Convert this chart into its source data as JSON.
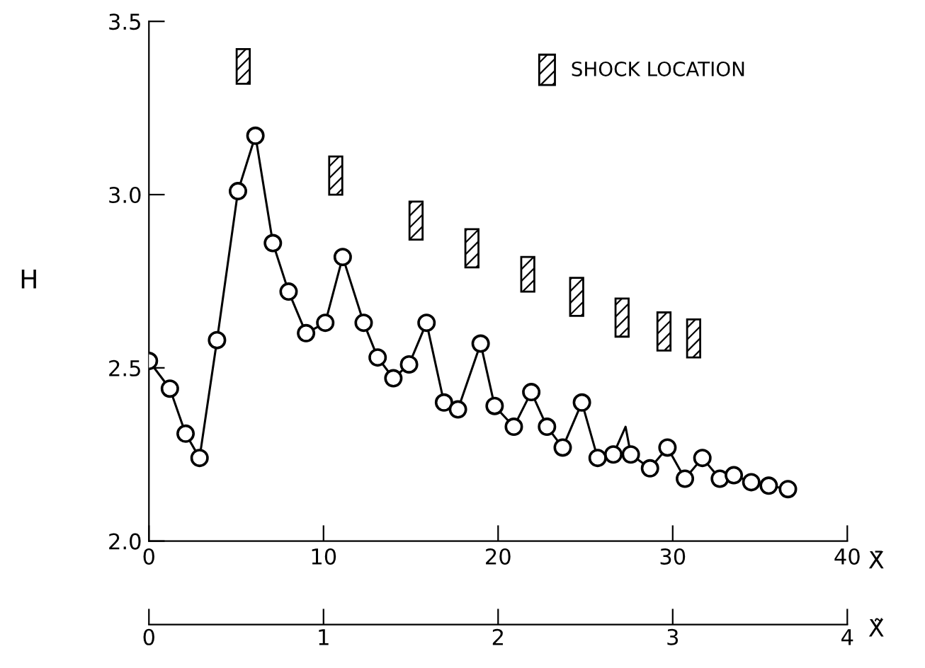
{
  "chart_data": {
    "type": "line",
    "ylabel": "H",
    "xlabel": "X̄",
    "x2label": "X̃",
    "xlim": [
      0,
      40
    ],
    "xticks": [
      0,
      10,
      20,
      30,
      40
    ],
    "ylim": [
      2.0,
      3.5
    ],
    "yticks": [
      {
        "value": 2,
        "label": "2.0"
      },
      {
        "value": 2.5,
        "label": "2.5"
      },
      {
        "value": 3,
        "label": "3.0"
      },
      {
        "value": 3.5,
        "label": "3.5"
      }
    ],
    "x2lim": [
      0,
      4
    ],
    "x2ticks": [
      0,
      1,
      2,
      3,
      4
    ],
    "grid": false,
    "legend": "top right",
    "series": [
      {
        "marker": "none",
        "color": "#000000",
        "x": [
          0,
          1.2,
          2.1,
          2.9,
          3.9,
          5.1,
          6.1,
          7.1,
          8.0,
          9.0,
          10.1,
          11.1,
          12.3,
          13.1,
          14.0,
          14.9,
          15.9,
          16.9,
          17.7,
          19.0,
          19.8,
          20.9,
          21.9,
          22.8,
          23.7,
          24.8,
          25.7,
          26.6,
          27.3,
          27.6,
          28.7,
          29.7,
          30.7,
          31.7,
          32.7,
          33.5,
          34.5,
          35.5,
          36.6
        ],
        "values": [
          2.52,
          2.44,
          2.31,
          2.24,
          2.58,
          3.01,
          3.17,
          2.86,
          2.72,
          2.6,
          2.63,
          2.82,
          2.63,
          2.53,
          2.47,
          2.51,
          2.63,
          2.4,
          2.38,
          2.57,
          2.39,
          2.33,
          2.43,
          2.33,
          2.27,
          2.4,
          2.24,
          2.25,
          2.33,
          2.25,
          2.21,
          2.27,
          2.18,
          2.24,
          2.18,
          2.19,
          2.17,
          2.16,
          2.15
        ]
      },
      {
        "type": "scatter",
        "marker": "circle",
        "color": "#000000",
        "x": [
          0,
          1.2,
          2.1,
          2.9,
          3.9,
          5.1,
          6.1,
          7.1,
          8.0,
          9.0,
          10.1,
          11.1,
          12.3,
          13.1,
          14.0,
          14.9,
          15.9,
          16.9,
          17.7,
          19.0,
          19.8,
          20.9,
          21.9,
          22.8,
          23.7,
          24.8,
          25.7,
          26.6,
          27.6,
          28.7,
          29.7,
          30.7,
          31.7,
          32.7,
          33.5,
          34.5,
          35.5,
          36.6
        ],
        "values": [
          2.52,
          2.44,
          2.31,
          2.24,
          2.58,
          3.01,
          3.17,
          2.86,
          2.72,
          2.6,
          2.63,
          2.82,
          2.63,
          2.53,
          2.47,
          2.51,
          2.63,
          2.4,
          2.38,
          2.57,
          2.39,
          2.33,
          2.43,
          2.33,
          2.27,
          2.4,
          2.24,
          2.25,
          2.25,
          2.21,
          2.27,
          2.18,
          2.24,
          2.18,
          2.19,
          2.17,
          2.16,
          2.15
        ]
      },
      {
        "type": "bar",
        "name": "SHOCK LOCATION",
        "color": "#000000",
        "x": [
          5.4,
          10.7,
          15.3,
          18.5,
          21.7,
          24.5,
          27.1,
          29.5,
          31.2
        ],
        "base": [
          3.32,
          3.0,
          2.87,
          2.79,
          2.72,
          2.65,
          2.59,
          2.55,
          2.53
        ],
        "values": [
          0.1,
          0.11,
          0.11,
          0.11,
          0.1,
          0.11,
          0.11,
          0.11,
          0.11
        ]
      }
    ]
  }
}
